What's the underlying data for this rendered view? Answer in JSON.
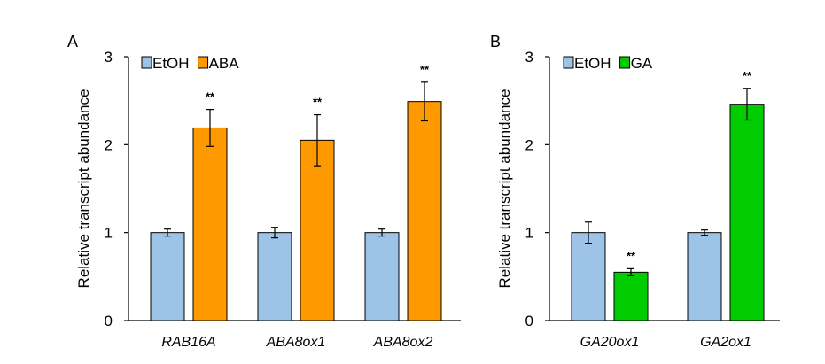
{
  "chart_data": [
    {
      "panel_label": "A",
      "type": "bar",
      "ylabel": "Relative transcript abundance",
      "ylim": [
        0,
        3
      ],
      "yticks": [
        "0",
        "1",
        "2",
        "3"
      ],
      "categories": [
        "RAB16A",
        "ABA8ox1",
        "ABA8ox2"
      ],
      "series": [
        {
          "name": "EtOH",
          "color": "#9dc3e6",
          "values": [
            1.0,
            1.0,
            1.0
          ],
          "errors": [
            0.04,
            0.06,
            0.04
          ],
          "significance": [
            "",
            "",
            ""
          ]
        },
        {
          "name": "ABA",
          "color": "#ff9900",
          "values": [
            2.19,
            2.05,
            2.49
          ],
          "errors": [
            0.21,
            0.29,
            0.22
          ],
          "significance": [
            "**",
            "**",
            "**"
          ]
        }
      ],
      "legend_position": "top-left"
    },
    {
      "panel_label": "B",
      "type": "bar",
      "ylabel": "Relative transcript abundance",
      "ylim": [
        0,
        3
      ],
      "yticks": [
        "0",
        "1",
        "2",
        "3"
      ],
      "categories": [
        "GA20ox1",
        "GA2ox1"
      ],
      "series": [
        {
          "name": "EtOH",
          "color": "#9dc3e6",
          "values": [
            1.0,
            1.0
          ],
          "errors": [
            0.12,
            0.03
          ],
          "significance": [
            "",
            ""
          ]
        },
        {
          "name": "GA",
          "color": "#00cc00",
          "values": [
            0.55,
            2.46
          ],
          "errors": [
            0.04,
            0.18
          ],
          "significance": [
            "**",
            "**"
          ]
        }
      ],
      "legend_position": "top-left"
    }
  ]
}
